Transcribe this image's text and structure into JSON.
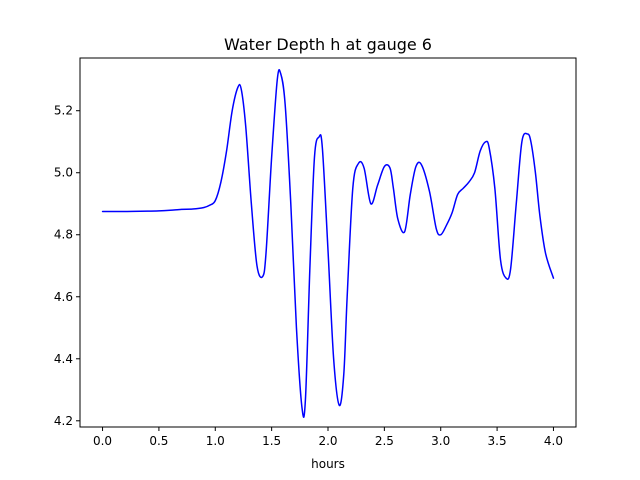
{
  "chart_data": {
    "type": "line",
    "title": "Water Depth h at gauge 6",
    "xlabel": "hours",
    "ylabel": "",
    "xlim": [
      -0.2,
      4.2
    ],
    "ylim": [
      4.18,
      5.37
    ],
    "xticks": [
      0.0,
      0.5,
      1.0,
      1.5,
      2.0,
      2.5,
      3.0,
      3.5,
      4.0
    ],
    "xtick_labels": [
      "0.0",
      "0.5",
      "1.0",
      "1.5",
      "2.0",
      "2.5",
      "3.0",
      "3.5",
      "4.0"
    ],
    "yticks": [
      4.2,
      4.4,
      4.6,
      4.8,
      5.0,
      5.2
    ],
    "ytick_labels": [
      "4.2",
      "4.4",
      "4.6",
      "4.8",
      "5.0",
      "5.2"
    ],
    "grid": false,
    "series": [
      {
        "color": "#0000ff",
        "x": [
          0.0,
          0.2,
          0.4,
          0.5,
          0.6,
          0.7,
          0.8,
          0.9,
          0.95,
          1.0,
          1.05,
          1.1,
          1.15,
          1.2,
          1.23,
          1.27,
          1.32,
          1.37,
          1.42,
          1.45,
          1.5,
          1.55,
          1.58,
          1.62,
          1.67,
          1.72,
          1.77,
          1.8,
          1.84,
          1.88,
          1.92,
          1.95,
          2.0,
          2.05,
          2.1,
          2.14,
          2.17,
          2.22,
          2.27,
          2.32,
          2.38,
          2.44,
          2.5,
          2.55,
          2.58,
          2.62,
          2.68,
          2.73,
          2.78,
          2.83,
          2.9,
          2.96,
          3.0,
          3.05,
          3.1,
          3.15,
          3.2,
          3.25,
          3.3,
          3.35,
          3.4,
          3.43,
          3.48,
          3.53,
          3.58,
          3.62,
          3.67,
          3.72,
          3.77,
          3.8,
          3.84,
          3.88,
          3.93,
          4.0
        ],
        "y": [
          4.875,
          4.875,
          4.876,
          4.877,
          4.879,
          4.882,
          4.883,
          4.888,
          4.895,
          4.91,
          4.97,
          5.07,
          5.2,
          5.275,
          5.27,
          5.15,
          4.9,
          4.7,
          4.665,
          4.74,
          5.05,
          5.3,
          5.32,
          5.22,
          4.9,
          4.5,
          4.24,
          4.27,
          4.7,
          5.05,
          5.115,
          5.08,
          4.75,
          4.4,
          4.25,
          4.35,
          4.6,
          4.95,
          5.03,
          5.015,
          4.9,
          4.96,
          5.02,
          5.015,
          4.95,
          4.85,
          4.81,
          4.93,
          5.02,
          5.025,
          4.94,
          4.82,
          4.8,
          4.83,
          4.87,
          4.93,
          4.95,
          4.97,
          5.0,
          5.07,
          5.1,
          5.08,
          4.95,
          4.72,
          4.66,
          4.69,
          4.9,
          5.1,
          5.125,
          5.1,
          5.0,
          4.86,
          4.74,
          4.66
        ]
      }
    ]
  }
}
